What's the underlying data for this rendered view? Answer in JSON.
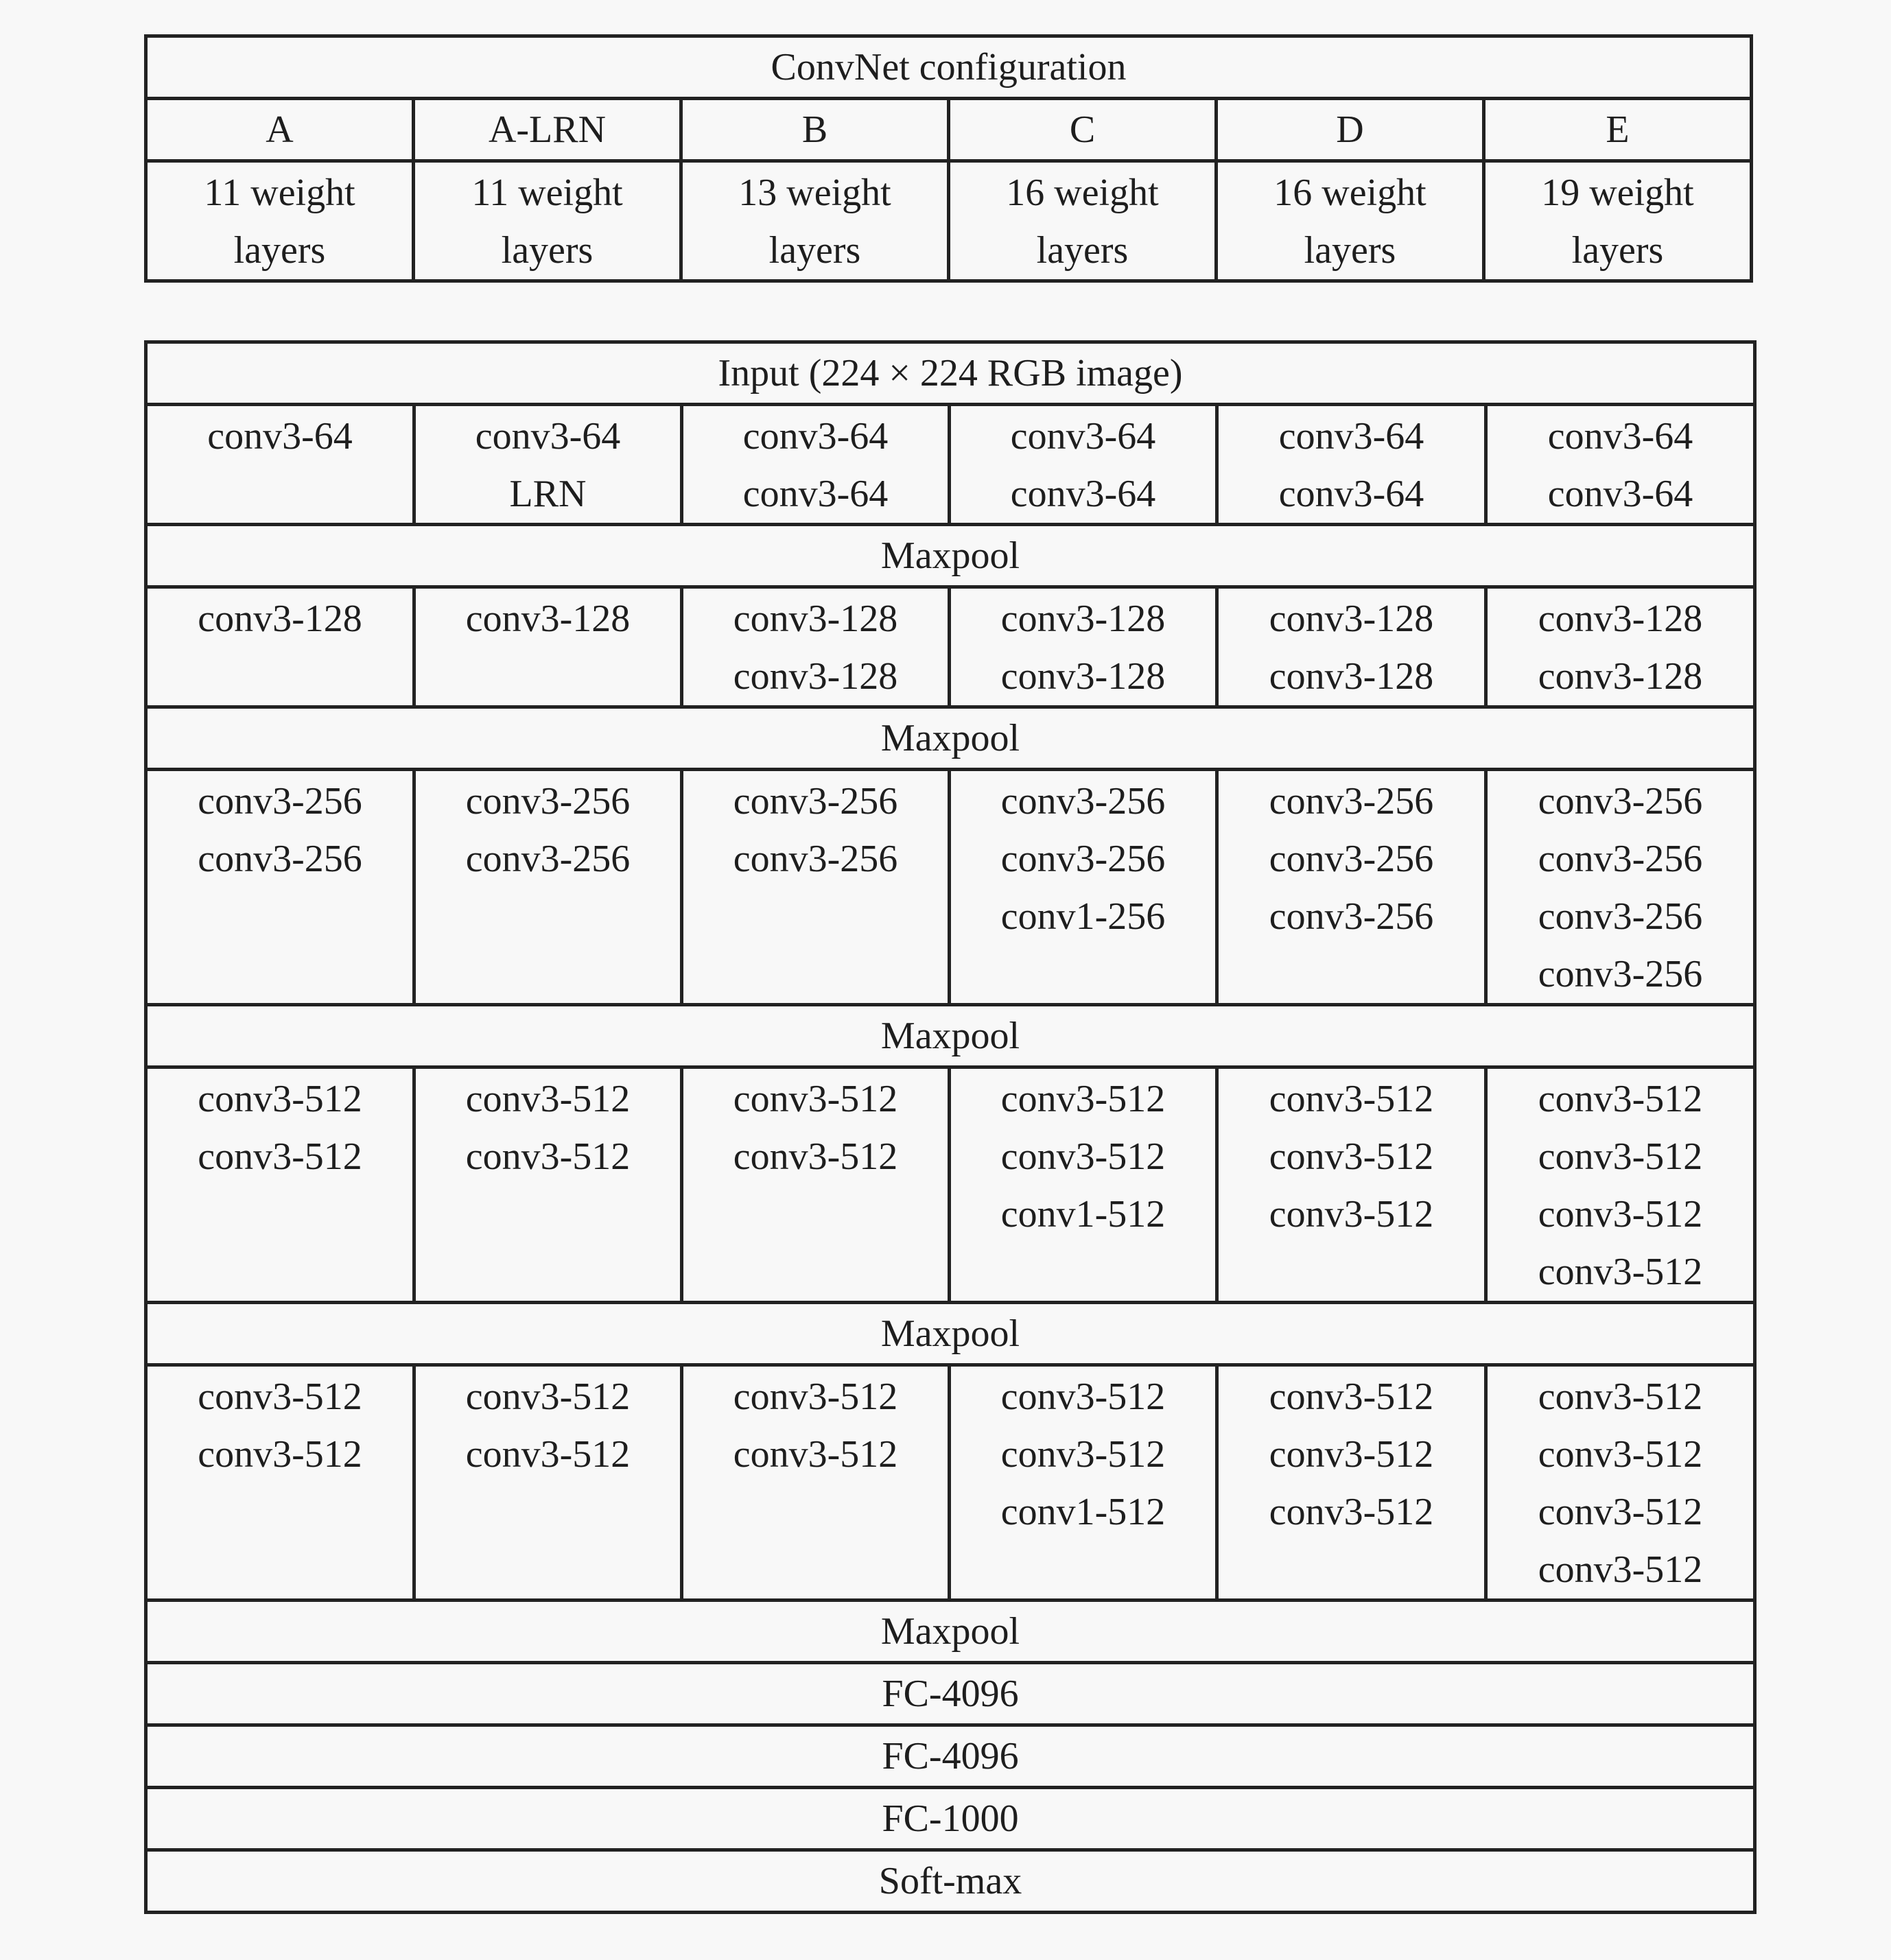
{
  "config_table": {
    "title": "ConvNet configuration",
    "columns": [
      {
        "name": "A",
        "depth": [
          "11 weight",
          "layers"
        ]
      },
      {
        "name": "A-LRN",
        "depth": [
          "11 weight",
          "layers"
        ]
      },
      {
        "name": "B",
        "depth": [
          "13 weight",
          "layers"
        ]
      },
      {
        "name": "C",
        "depth": [
          "16 weight",
          "layers"
        ]
      },
      {
        "name": "D",
        "depth": [
          "16 weight",
          "layers"
        ]
      },
      {
        "name": "E",
        "depth": [
          "19 weight",
          "layers"
        ]
      }
    ]
  },
  "layers_table": {
    "rows": [
      {
        "type": "full",
        "text": "Input (224 × 224 RGB image)"
      },
      {
        "type": "block",
        "cells": [
          [
            "conv3-64"
          ],
          [
            "conv3-64",
            "LRN"
          ],
          [
            "conv3-64",
            "conv3-64"
          ],
          [
            "conv3-64",
            "conv3-64"
          ],
          [
            "conv3-64",
            "conv3-64"
          ],
          [
            "conv3-64",
            "conv3-64"
          ]
        ]
      },
      {
        "type": "full",
        "text": "Maxpool"
      },
      {
        "type": "block",
        "cells": [
          [
            "conv3-128"
          ],
          [
            "conv3-128"
          ],
          [
            "conv3-128",
            "conv3-128"
          ],
          [
            "conv3-128",
            "conv3-128"
          ],
          [
            "conv3-128",
            "conv3-128"
          ],
          [
            "conv3-128",
            "conv3-128"
          ]
        ]
      },
      {
        "type": "full",
        "text": "Maxpool"
      },
      {
        "type": "block",
        "cells": [
          [
            "conv3-256",
            "conv3-256"
          ],
          [
            "conv3-256",
            "conv3-256"
          ],
          [
            "conv3-256",
            "conv3-256"
          ],
          [
            "conv3-256",
            "conv3-256",
            "conv1-256"
          ],
          [
            "conv3-256",
            "conv3-256",
            "conv3-256"
          ],
          [
            "conv3-256",
            "conv3-256",
            "conv3-256",
            "conv3-256"
          ]
        ]
      },
      {
        "type": "full",
        "text": "Maxpool"
      },
      {
        "type": "block",
        "cells": [
          [
            "conv3-512",
            "conv3-512"
          ],
          [
            "conv3-512",
            "conv3-512"
          ],
          [
            "conv3-512",
            "conv3-512"
          ],
          [
            "conv3-512",
            "conv3-512",
            "conv1-512"
          ],
          [
            "conv3-512",
            "conv3-512",
            "conv3-512"
          ],
          [
            "conv3-512",
            "conv3-512",
            "conv3-512",
            "conv3-512"
          ]
        ]
      },
      {
        "type": "full",
        "text": "Maxpool"
      },
      {
        "type": "block",
        "cells": [
          [
            "conv3-512",
            "conv3-512"
          ],
          [
            "conv3-512",
            "conv3-512"
          ],
          [
            "conv3-512",
            "conv3-512"
          ],
          [
            "conv3-512",
            "conv3-512",
            "conv1-512"
          ],
          [
            "conv3-512",
            "conv3-512",
            "conv3-512"
          ],
          [
            "conv3-512",
            "conv3-512",
            "conv3-512",
            "conv3-512"
          ]
        ]
      },
      {
        "type": "full",
        "text": "Maxpool"
      },
      {
        "type": "full",
        "text": "FC-4096"
      },
      {
        "type": "full",
        "text": "FC-4096"
      },
      {
        "type": "full",
        "text": "FC-1000"
      },
      {
        "type": "full",
        "text": "Soft-max"
      }
    ]
  }
}
